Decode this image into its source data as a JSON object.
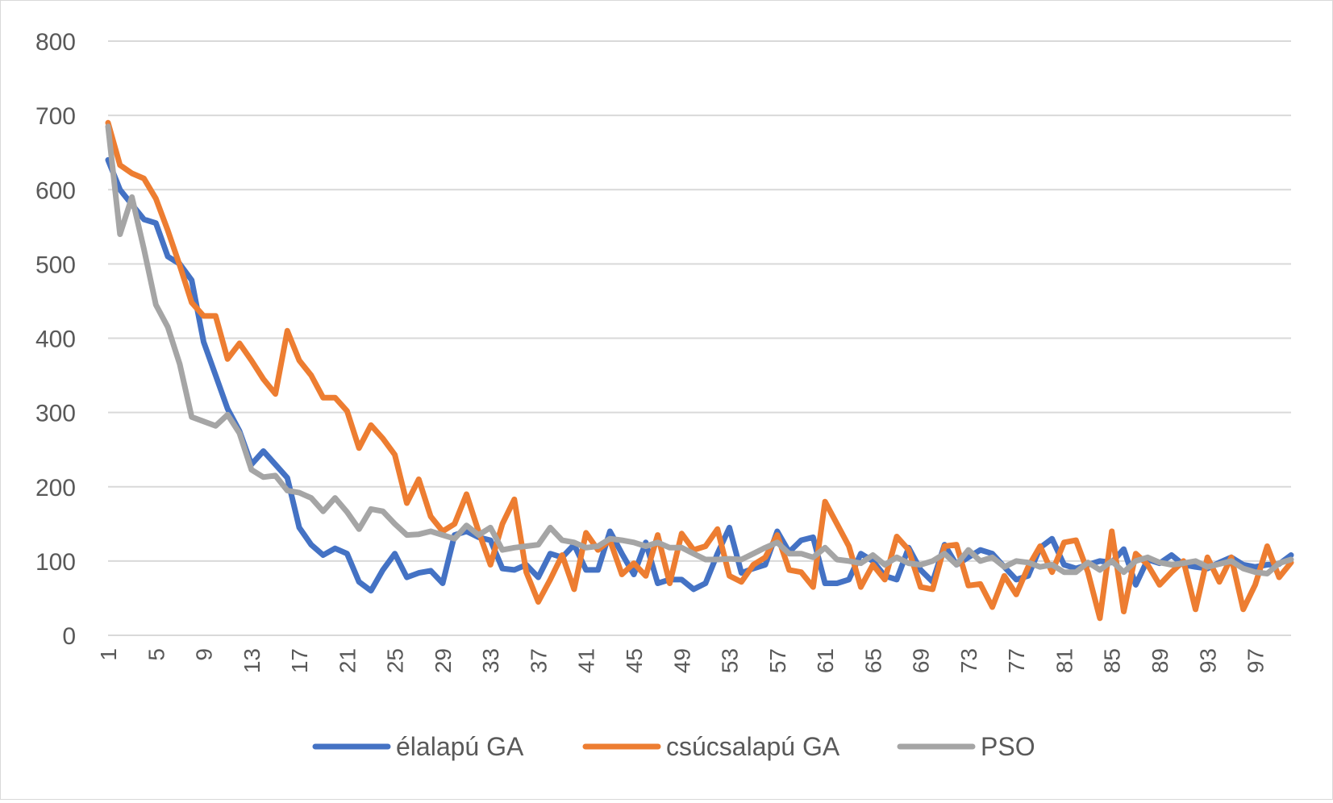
{
  "chart_data": {
    "type": "line",
    "title": "",
    "xlabel": "",
    "ylabel": "",
    "ylim": [
      0,
      800
    ],
    "y_ticks": [
      0,
      100,
      200,
      300,
      400,
      500,
      600,
      700,
      800
    ],
    "x": [
      1,
      2,
      3,
      4,
      5,
      6,
      7,
      8,
      9,
      10,
      11,
      12,
      13,
      14,
      15,
      16,
      17,
      18,
      19,
      20,
      21,
      22,
      23,
      24,
      25,
      26,
      27,
      28,
      29,
      30,
      31,
      32,
      33,
      34,
      35,
      36,
      37,
      38,
      39,
      40,
      41,
      42,
      43,
      44,
      45,
      46,
      47,
      48,
      49,
      50,
      51,
      52,
      53,
      54,
      55,
      56,
      57,
      58,
      59,
      60,
      61,
      62,
      63,
      64,
      65,
      66,
      67,
      68,
      69,
      70,
      71,
      72,
      73,
      74,
      75,
      76,
      77,
      78,
      79,
      80,
      81,
      82,
      83,
      84,
      85,
      86,
      87,
      88,
      89,
      90,
      91,
      92,
      93,
      94,
      95,
      96,
      97,
      98,
      99,
      100
    ],
    "x_tick_labels": [
      "1",
      "5",
      "9",
      "13",
      "17",
      "21",
      "25",
      "29",
      "33",
      "37",
      "41",
      "45",
      "49",
      "53",
      "57",
      "61",
      "65",
      "69",
      "73",
      "77",
      "81",
      "85",
      "89",
      "93",
      "97"
    ],
    "grid": true,
    "legend_position": "bottom",
    "series": [
      {
        "name": "élalapú GA",
        "color": "#4472c4",
        "values": [
          640,
          600,
          580,
          560,
          555,
          510,
          500,
          478,
          395,
          350,
          305,
          275,
          230,
          248,
          230,
          212,
          145,
          122,
          108,
          117,
          110,
          72,
          60,
          88,
          110,
          78,
          84,
          87,
          70,
          135,
          140,
          132,
          128,
          90,
          88,
          95,
          78,
          110,
          105,
          122,
          88,
          88,
          140,
          110,
          82,
          125,
          70,
          75,
          75,
          62,
          70,
          110,
          145,
          84,
          90,
          95,
          140,
          112,
          128,
          132,
          70,
          70,
          75,
          110,
          100,
          80,
          75,
          118,
          88,
          72,
          122,
          95,
          105,
          115,
          110,
          92,
          75,
          80,
          118,
          130,
          95,
          90,
          95,
          100,
          98,
          116,
          68,
          102,
          97,
          108,
          95,
          92,
          90,
          98,
          105,
          95,
          92,
          95,
          96,
          108
        ]
      },
      {
        "name": "csúcsalapú GA",
        "color": "#ed7d31",
        "values": [
          690,
          633,
          622,
          615,
          588,
          545,
          498,
          448,
          430,
          430,
          372,
          393,
          370,
          345,
          325,
          410,
          370,
          350,
          320,
          320,
          302,
          252,
          283,
          265,
          243,
          178,
          210,
          160,
          140,
          150,
          190,
          140,
          95,
          150,
          183,
          85,
          45,
          75,
          108,
          62,
          138,
          115,
          128,
          82,
          97,
          80,
          135,
          70,
          137,
          115,
          120,
          143,
          80,
          72,
          95,
          105,
          135,
          88,
          85,
          65,
          180,
          150,
          120,
          65,
          95,
          75,
          133,
          115,
          65,
          62,
          120,
          122,
          67,
          69,
          38,
          80,
          55,
          92,
          120,
          85,
          125,
          128,
          85,
          23,
          140,
          32,
          110,
          95,
          68,
          85,
          100,
          35,
          105,
          72,
          105,
          35,
          68,
          120,
          78,
          98
        ]
      },
      {
        "name": "PSO",
        "color": "#a5a5a5",
        "values": [
          685,
          540,
          590,
          520,
          445,
          415,
          365,
          294,
          288,
          282,
          297,
          272,
          223,
          213,
          215,
          195,
          192,
          185,
          167,
          185,
          166,
          143,
          170,
          167,
          150,
          135,
          136,
          140,
          135,
          130,
          148,
          135,
          145,
          115,
          118,
          120,
          122,
          145,
          128,
          125,
          118,
          120,
          130,
          128,
          125,
          120,
          125,
          118,
          118,
          110,
          102,
          102,
          103,
          102,
          110,
          118,
          125,
          110,
          110,
          105,
          118,
          102,
          100,
          97,
          108,
          95,
          105,
          97,
          95,
          100,
          110,
          95,
          115,
          100,
          105,
          92,
          100,
          98,
          92,
          95,
          85,
          85,
          98,
          88,
          100,
          85,
          100,
          105,
          98,
          95,
          97,
          100,
          92,
          96,
          100,
          90,
          85,
          83,
          97,
          102
        ]
      }
    ]
  }
}
